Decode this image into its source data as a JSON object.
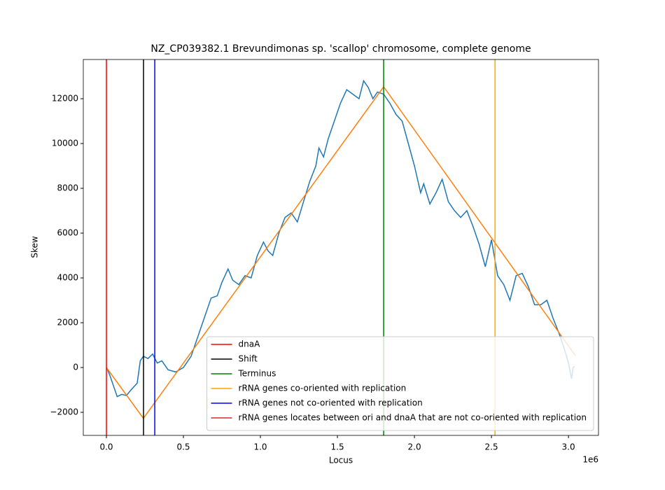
{
  "chart_data": {
    "type": "line",
    "title": "NZ_CP039382.1 Brevundimonas sp. 'scallop' chromosome, complete genome",
    "x_label": "Locus",
    "y_label": "Skew",
    "x_offset_label": "1e6",
    "xlim": [
      -150000,
      3195000
    ],
    "ylim": [
      -3031,
      13750
    ],
    "xticks": [
      {
        "value": 0,
        "label": "0.0"
      },
      {
        "value": 500000,
        "label": "0.5"
      },
      {
        "value": 1000000,
        "label": "1.0"
      },
      {
        "value": 1500000,
        "label": "1.5"
      },
      {
        "value": 2000000,
        "label": "2.0"
      },
      {
        "value": 2500000,
        "label": "2.5"
      },
      {
        "value": 3000000,
        "label": "3.0"
      }
    ],
    "yticks": [
      {
        "value": -2000,
        "label": "−2000"
      },
      0,
      2000,
      4000,
      6000,
      8000,
      10000,
      12000
    ],
    "series": [
      {
        "color": "#1f77b4",
        "x": [
          0,
          20000,
          50000,
          70000,
          100000,
          130000,
          160000,
          200000,
          220000,
          240000,
          270000,
          300000,
          330000,
          360000,
          400000,
          450000,
          500000,
          550000,
          600000,
          650000,
          680000,
          720000,
          750000,
          790000,
          820000,
          860000,
          900000,
          940000,
          980000,
          1020000,
          1050000,
          1080000,
          1120000,
          1160000,
          1200000,
          1240000,
          1280000,
          1320000,
          1360000,
          1380000,
          1410000,
          1440000,
          1480000,
          1520000,
          1560000,
          1600000,
          1640000,
          1670000,
          1700000,
          1730000,
          1760000,
          1800000,
          1840000,
          1880000,
          1920000,
          1960000,
          2000000,
          2040000,
          2060000,
          2100000,
          2140000,
          2180000,
          2220000,
          2260000,
          2300000,
          2340000,
          2380000,
          2420000,
          2460000,
          2500000,
          2540000,
          2580000,
          2620000,
          2660000,
          2700000,
          2740000,
          2780000,
          2820000,
          2860000,
          2900000,
          2940000,
          2970000,
          3000000,
          3020000,
          3030000,
          3040000
        ],
        "values": [
          0,
          -300,
          -900,
          -1300,
          -1200,
          -1250,
          -1000,
          -700,
          300,
          500,
          400,
          600,
          200,
          300,
          -100,
          -200,
          0,
          500,
          1500,
          2500,
          3100,
          3200,
          3800,
          4400,
          3900,
          3700,
          4100,
          4000,
          5000,
          5600,
          5200,
          5000,
          6000,
          6700,
          6900,
          6500,
          7400,
          8300,
          9000,
          9800,
          9400,
          10200,
          11000,
          11800,
          12400,
          12200,
          12000,
          12800,
          12500,
          12000,
          12300,
          12200,
          11800,
          11300,
          11000,
          10000,
          9000,
          7800,
          8200,
          7300,
          7800,
          8400,
          7400,
          7000,
          6700,
          7000,
          6300,
          5500,
          4500,
          5700,
          4100,
          3700,
          3000,
          4100,
          4200,
          3600,
          2800,
          2800,
          3000,
          2200,
          1500,
          900,
          200,
          -500,
          0,
          50
        ]
      },
      {
        "color": "#ff7f0e",
        "x": [
          0,
          240000,
          1800000,
          3045000
        ],
        "values": [
          0,
          -2270,
          12530,
          530
        ]
      }
    ],
    "markers": [
      {
        "name": "dnaA",
        "color": "#ff0000",
        "x": [
          0
        ]
      },
      {
        "name": "Shift",
        "color": "#000000",
        "x": [
          241000
        ]
      },
      {
        "name": "Terminus",
        "color": "#008000",
        "x": [
          1800000
        ]
      },
      {
        "name": "rRNA genes co-oriented with replication",
        "color": "#ffa500",
        "x": [
          2523000
        ]
      },
      {
        "name": "rRNA genes not co-oriented with replication",
        "color": "#0000ff",
        "x": [
          314000
        ]
      },
      {
        "name": "rRNA genes locates between ori and dnaA that are not co-oriented with replication",
        "color": "#d62728",
        "x": []
      }
    ],
    "legend": "lower right"
  }
}
